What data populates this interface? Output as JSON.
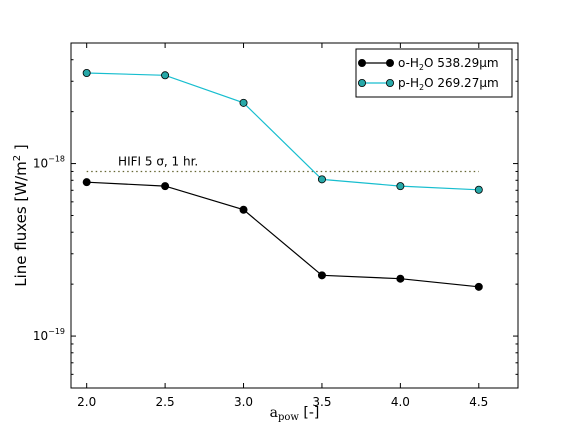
{
  "chart_data": {
    "type": "line",
    "x": [
      2.0,
      2.5,
      3.0,
      3.5,
      4.0,
      4.5
    ],
    "xlim": [
      1.9,
      4.75
    ],
    "ylim": [
      5e-20,
      5e-18
    ],
    "yscale": "log",
    "x_ticks": [
      "2.0",
      "2.5",
      "3.0",
      "3.5",
      "4.0",
      "4.5"
    ],
    "y_tick_values": [
      1e-19,
      1e-18
    ],
    "y_ticks_base": [
      "10",
      "10"
    ],
    "y_ticks_exp": [
      "−19",
      "−18"
    ],
    "xlabel_main": "a",
    "xlabel_sub": "pow",
    "xlabel_suffix": " [-]",
    "ylabel_prefix": "Line fluxes [W/m",
    "ylabel_sup": "2",
    "ylabel_suffix": " ]",
    "legend_position": "top-right",
    "series": [
      {
        "name_prefix": "o-H",
        "name_sub": "2",
        "name_suffix": "O 538.29μm",
        "color": "#000000",
        "marker_fill": "#000000",
        "values": [
          7.8e-19,
          7.4e-19,
          5.4e-19,
          2.25e-19,
          2.15e-19,
          1.93e-19
        ]
      },
      {
        "name_prefix": "p-H",
        "name_sub": "2",
        "name_suffix": "O 269.27μm",
        "color": "#17becf",
        "marker_fill": "#27a8a8",
        "values": [
          3.35e-18,
          3.25e-18,
          2.25e-18,
          8.1e-19,
          7.4e-19,
          7.05e-19
        ]
      }
    ],
    "threshold": {
      "value": 9e-19,
      "x_range": [
        2.0,
        4.5
      ],
      "color": "#666633",
      "label": "HIFI 5 σ, 1 hr."
    }
  }
}
